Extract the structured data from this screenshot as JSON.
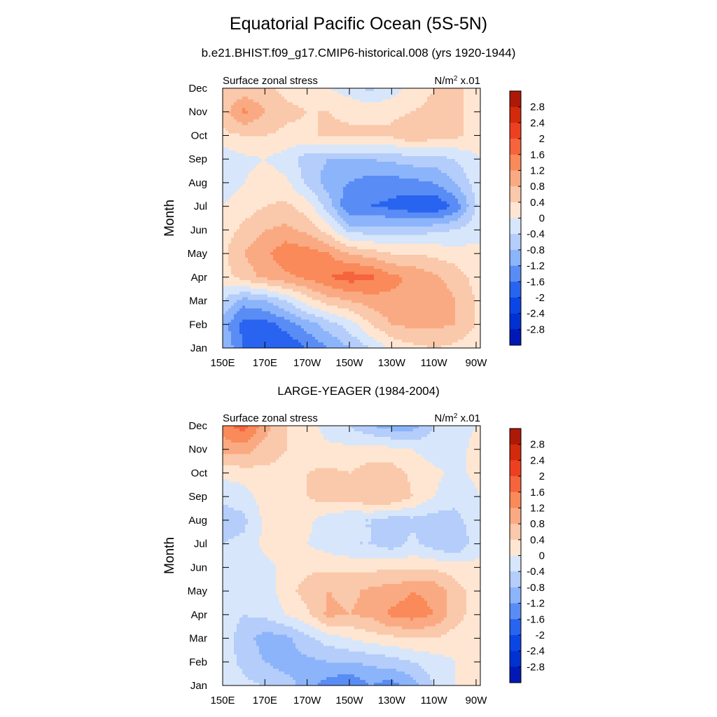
{
  "title": "Equatorial Pacific Ocean (5S-5N)",
  "colors": {
    "levels": [
      "#000096",
      "#0019b4",
      "#0032d2",
      "#0a46e6",
      "#2864f0",
      "#5a8cf5",
      "#8cb4fa",
      "#b4cdfa",
      "#d7e6fa",
      "#ffe6d2",
      "#fac8aa",
      "#faaa82",
      "#fa8a5a",
      "#f5643c",
      "#ee4020",
      "#d22a0a",
      "#ae1806",
      "#8c0000"
    ]
  },
  "chart_data": [
    {
      "type": "heatmap",
      "title": "b.e21.BHIST.f09_g17.CMIP6-historical.008 (yrs 1920-1944)",
      "left_label": "Surface zonal stress",
      "unit_base": "N/m",
      "unit_sup": "2",
      "unit_suffix": " x.01",
      "ylabel": "Month",
      "xlabel": "",
      "x_ticks": [
        "150E",
        "170E",
        "170W",
        "150W",
        "130W",
        "110W",
        "90W"
      ],
      "x_tick_lons": [
        150,
        170,
        190,
        210,
        230,
        250,
        270
      ],
      "xlim": [
        150,
        272
      ],
      "y_ticks": [
        "Jan",
        "Feb",
        "Mar",
        "Apr",
        "May",
        "Jun",
        "Jul",
        "Aug",
        "Sep",
        "Oct",
        "Nov",
        "Dec"
      ],
      "ylim": [
        1,
        12
      ],
      "colorbar_labels": [
        "2.8",
        "2.4",
        "2",
        "1.6",
        "1.2",
        "0.8",
        "0.4",
        "0",
        "-0.4",
        "-0.8",
        "-1.2",
        "-1.6",
        "-2",
        "-2.4",
        "-2.8"
      ],
      "colorbar_levels": [
        2.8,
        2.4,
        2,
        1.6,
        1.2,
        0.8,
        0.4,
        0,
        -0.4,
        -0.8,
        -1.2,
        -1.6,
        -2,
        -2.4,
        -2.8
      ],
      "longitudes": [
        150,
        160,
        170,
        180,
        190,
        200,
        210,
        220,
        230,
        240,
        250,
        260,
        272
      ],
      "months": [
        1,
        2,
        3,
        4,
        5,
        6,
        7,
        8,
        9,
        10,
        11,
        12
      ],
      "values": [
        [
          -0.8,
          -1.6,
          -1.8,
          -2.0,
          -1.6,
          -1.2,
          -0.8,
          -0.4,
          0.1,
          0.3,
          0.4,
          0.3,
          0.1
        ],
        [
          -1.0,
          -1.8,
          -1.8,
          -1.4,
          -1.0,
          -0.6,
          -0.2,
          0.4,
          0.8,
          0.9,
          0.9,
          0.8,
          0.3
        ],
        [
          -0.4,
          -1.0,
          -0.8,
          -0.4,
          0.2,
          0.6,
          0.8,
          1.0,
          1.1,
          1.2,
          1.2,
          0.8,
          0.3
        ],
        [
          0.2,
          0.6,
          0.9,
          1.1,
          1.3,
          1.6,
          1.8,
          1.7,
          1.3,
          1.1,
          0.9,
          0.6,
          0.2
        ],
        [
          0.3,
          0.8,
          1.1,
          1.5,
          1.4,
          1.2,
          0.8,
          0.6,
          0.4,
          0.4,
          0.3,
          0.2,
          0.1
        ],
        [
          0.2,
          0.5,
          0.8,
          0.9,
          0.7,
          0.2,
          -0.6,
          -0.6,
          -0.6,
          -0.6,
          -0.5,
          -0.4,
          -0.1
        ],
        [
          0.0,
          0.2,
          0.4,
          0.5,
          0.2,
          -0.6,
          -1.6,
          -1.6,
          -1.7,
          -1.9,
          -2.0,
          -1.5,
          -0.2
        ],
        [
          -0.2,
          0.0,
          0.2,
          0.1,
          -0.5,
          -1.0,
          -1.2,
          -1.4,
          -1.4,
          -1.3,
          -1.2,
          -0.8,
          -0.1
        ],
        [
          -0.3,
          -0.1,
          0.0,
          -0.2,
          -0.6,
          -0.8,
          -0.8,
          -0.8,
          -0.7,
          -0.6,
          -0.6,
          -0.4,
          0.0
        ],
        [
          0.3,
          0.4,
          0.4,
          0.3,
          0.3,
          0.5,
          0.5,
          0.5,
          0.5,
          0.8,
          0.6,
          0.5,
          0.2
        ],
        [
          0.6,
          1.3,
          0.8,
          0.5,
          0.4,
          0.4,
          0.3,
          0.3,
          0.3,
          0.4,
          0.5,
          0.5,
          0.2
        ],
        [
          0.4,
          0.5,
          0.5,
          0.3,
          0.2,
          0.0,
          -0.2,
          -0.5,
          -0.2,
          0.2,
          0.4,
          0.5,
          0.2
        ]
      ]
    },
    {
      "type": "heatmap",
      "title": "LARGE-YEAGER (1984-2004)",
      "left_label": "Surface zonal stress",
      "unit_base": "N/m",
      "unit_sup": "2",
      "unit_suffix": " x.01",
      "ylabel": "Month",
      "xlabel": "",
      "x_ticks": [
        "150E",
        "170E",
        "170W",
        "150W",
        "130W",
        "110W",
        "90W"
      ],
      "x_tick_lons": [
        150,
        170,
        190,
        210,
        230,
        250,
        270
      ],
      "xlim": [
        150,
        272
      ],
      "y_ticks": [
        "Jan",
        "Feb",
        "Mar",
        "Apr",
        "May",
        "Jun",
        "Jul",
        "Aug",
        "Sep",
        "Oct",
        "Nov",
        "Dec"
      ],
      "ylim": [
        1,
        12
      ],
      "colorbar_labels": [
        "2.8",
        "2.4",
        "2",
        "1.6",
        "1.2",
        "0.8",
        "0.4",
        "0",
        "-0.4",
        "-0.8",
        "-1.2",
        "-1.6",
        "-2",
        "-2.4",
        "-2.8"
      ],
      "colorbar_levels": [
        2.8,
        2.4,
        2,
        1.6,
        1.2,
        0.8,
        0.4,
        0,
        -0.4,
        -0.8,
        -1.2,
        -1.6,
        -2,
        -2.4,
        -2.8
      ],
      "longitudes": [
        150,
        160,
        170,
        180,
        190,
        200,
        210,
        220,
        230,
        240,
        250,
        260,
        272
      ],
      "months": [
        1,
        2,
        3,
        4,
        5,
        6,
        7,
        8,
        9,
        10,
        11,
        12
      ],
      "values": [
        [
          -0.1,
          -0.3,
          -0.4,
          -0.6,
          -1.0,
          -1.4,
          -1.6,
          -1.2,
          -1.4,
          -1.0,
          -0.4,
          0.0,
          0.1
        ],
        [
          -0.2,
          -0.5,
          -0.8,
          -1.0,
          -0.9,
          -0.8,
          -0.8,
          -0.7,
          -0.6,
          -0.4,
          -0.2,
          0.0,
          0.1
        ],
        [
          -0.2,
          -0.6,
          -1.0,
          -0.9,
          -0.5,
          -0.2,
          0.0,
          0.2,
          0.3,
          0.4,
          0.4,
          0.2,
          0.1
        ],
        [
          -0.2,
          -0.4,
          -0.3,
          0.0,
          0.3,
          0.9,
          0.8,
          0.9,
          1.3,
          1.4,
          1.2,
          0.6,
          0.1
        ],
        [
          -0.2,
          -0.4,
          -0.2,
          0.2,
          0.6,
          0.8,
          0.7,
          0.9,
          1.0,
          1.2,
          1.1,
          0.6,
          0.1
        ],
        [
          -0.1,
          -0.2,
          -0.1,
          0.1,
          0.3,
          0.3,
          0.3,
          0.3,
          0.3,
          0.3,
          0.3,
          0.2,
          0.1
        ],
        [
          -0.4,
          -0.3,
          0.1,
          0.1,
          0.0,
          -0.2,
          -0.4,
          -0.4,
          -0.6,
          -0.3,
          -0.6,
          -0.8,
          -0.1
        ],
        [
          -0.6,
          -0.5,
          0.1,
          0.2,
          0.1,
          -0.2,
          -0.4,
          -0.4,
          -0.6,
          -0.5,
          -0.6,
          -0.6,
          0.0
        ],
        [
          -0.3,
          -0.2,
          0.2,
          0.3,
          0.4,
          0.6,
          0.6,
          0.8,
          0.8,
          0.4,
          0.0,
          -0.2,
          0.0
        ],
        [
          0.1,
          0.2,
          0.3,
          0.3,
          0.4,
          0.5,
          0.4,
          0.6,
          0.6,
          0.3,
          0.1,
          -0.1,
          0.1
        ],
        [
          1.0,
          1.0,
          0.6,
          0.4,
          0.2,
          0.1,
          0.1,
          0.2,
          0.1,
          0.0,
          -0.2,
          -0.2,
          0.2
        ],
        [
          1.4,
          1.8,
          1.0,
          0.4,
          0.2,
          -0.2,
          -0.4,
          -0.8,
          -1.0,
          -1.0,
          -0.4,
          -0.1,
          0.0
        ]
      ]
    }
  ]
}
